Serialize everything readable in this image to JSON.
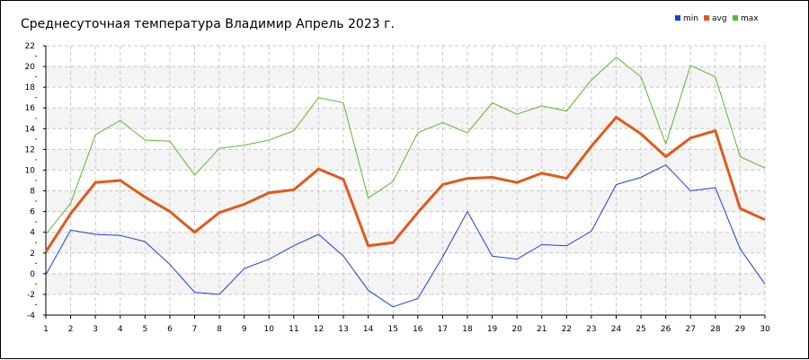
{
  "chart_data": {
    "type": "line",
    "title": "Среднесуточная температура Владимир  Апрель 2023 г.",
    "xlabel": "",
    "ylabel": "",
    "x": [
      1,
      2,
      3,
      4,
      5,
      6,
      7,
      8,
      9,
      10,
      11,
      12,
      13,
      14,
      15,
      16,
      17,
      18,
      19,
      20,
      21,
      22,
      23,
      24,
      25,
      26,
      27,
      28,
      29,
      30
    ],
    "ylim": [
      -4,
      22
    ],
    "yticks": [
      -4,
      -2,
      0,
      2,
      4,
      6,
      8,
      10,
      12,
      14,
      16,
      18,
      20,
      22
    ],
    "grid": true,
    "legend_position": "top-right",
    "series": [
      {
        "name": "min",
        "color": "#1a3fe0",
        "values": [
          -0.1,
          4.2,
          3.8,
          3.7,
          3.1,
          0.9,
          -1.8,
          -2.0,
          0.5,
          1.4,
          2.7,
          3.8,
          1.7,
          -1.6,
          -3.2,
          -2.4,
          1.6,
          6.0,
          1.7,
          1.4,
          2.8,
          2.7,
          4.1,
          8.6,
          9.3,
          10.5,
          8.0,
          8.3,
          2.4,
          -1.0
        ]
      },
      {
        "name": "avg",
        "color": "#e05a1a",
        "values": [
          2.1,
          5.8,
          8.8,
          9.0,
          7.4,
          6.0,
          4.0,
          5.9,
          6.7,
          7.8,
          8.1,
          10.1,
          9.1,
          2.7,
          3.0,
          5.9,
          8.6,
          9.2,
          9.3,
          8.8,
          9.7,
          9.2,
          12.3,
          15.1,
          13.5,
          11.3,
          13.1,
          13.8,
          6.3,
          5.2
        ]
      },
      {
        "name": "max",
        "color": "#5cb82e",
        "values": [
          3.8,
          6.8,
          13.4,
          14.8,
          12.9,
          12.8,
          9.5,
          12.1,
          12.4,
          12.9,
          13.8,
          17.0,
          16.5,
          7.3,
          8.9,
          13.6,
          14.6,
          13.6,
          16.5,
          15.4,
          16.2,
          15.7,
          18.7,
          20.9,
          19.0,
          12.5,
          20.1,
          19.0,
          11.3,
          10.2
        ]
      }
    ]
  }
}
